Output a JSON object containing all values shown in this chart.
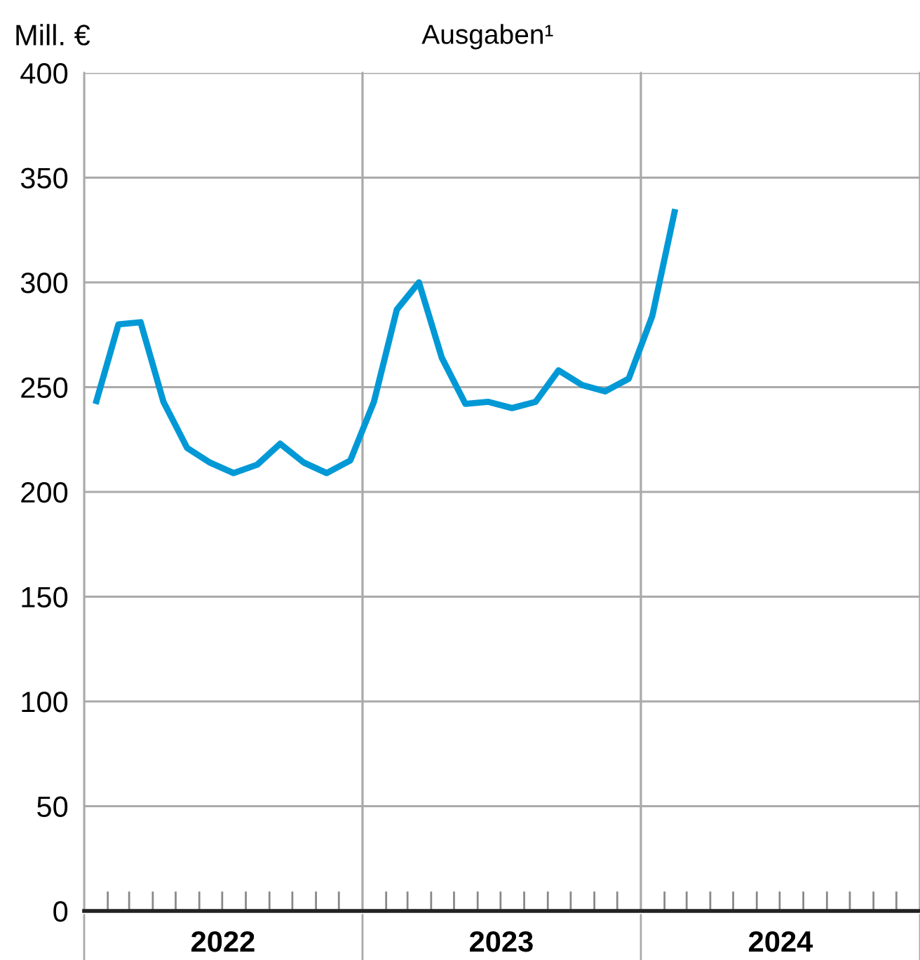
{
  "chart_data": {
    "type": "line",
    "title": "Ausgaben¹",
    "ylabel": "Mill. €",
    "x": [
      "2022-01-16",
      "2022-02-15",
      "2022-03-16",
      "2022-04-15",
      "2022-05-16",
      "2022-06-15",
      "2022-07-16",
      "2022-08-16",
      "2022-09-15",
      "2022-10-16",
      "2022-11-15",
      "2022-12-16",
      "2023-01-16",
      "2023-02-15",
      "2023-03-16",
      "2023-04-15",
      "2023-05-16",
      "2023-06-15",
      "2023-07-16",
      "2023-08-16",
      "2023-09-15",
      "2023-10-16",
      "2023-11-15",
      "2023-12-16",
      "2024-01-16",
      "2024-02-15"
    ],
    "series": [
      {
        "color": "#0099d6",
        "values": [
          242,
          280,
          281,
          243,
          221,
          214,
          209,
          213,
          223,
          214,
          209,
          215,
          243,
          287,
          300,
          264,
          242,
          243,
          240,
          243,
          258,
          251,
          248,
          254,
          284,
          335
        ]
      }
    ],
    "xlim": [
      "2022-01-01",
      "2025-01-01"
    ],
    "xticks": [
      {
        "value": "2022-01-01",
        "label": null
      },
      {
        "value": "2022-07-02",
        "label": "2022"
      },
      {
        "value": "2023-01-01",
        "label": null
      },
      {
        "value": "2023-07-02",
        "label": "2023"
      },
      {
        "value": "2024-01-01",
        "label": null
      },
      {
        "value": "2024-07-02",
        "label": "2024"
      },
      {
        "value": "2025-01-01",
        "label": null
      }
    ],
    "ylim": [
      0,
      400
    ],
    "yticks": [
      0,
      50,
      100,
      150,
      200,
      250,
      300,
      350,
      400
    ],
    "grid": true,
    "line_style": "solid",
    "marker": "none"
  }
}
